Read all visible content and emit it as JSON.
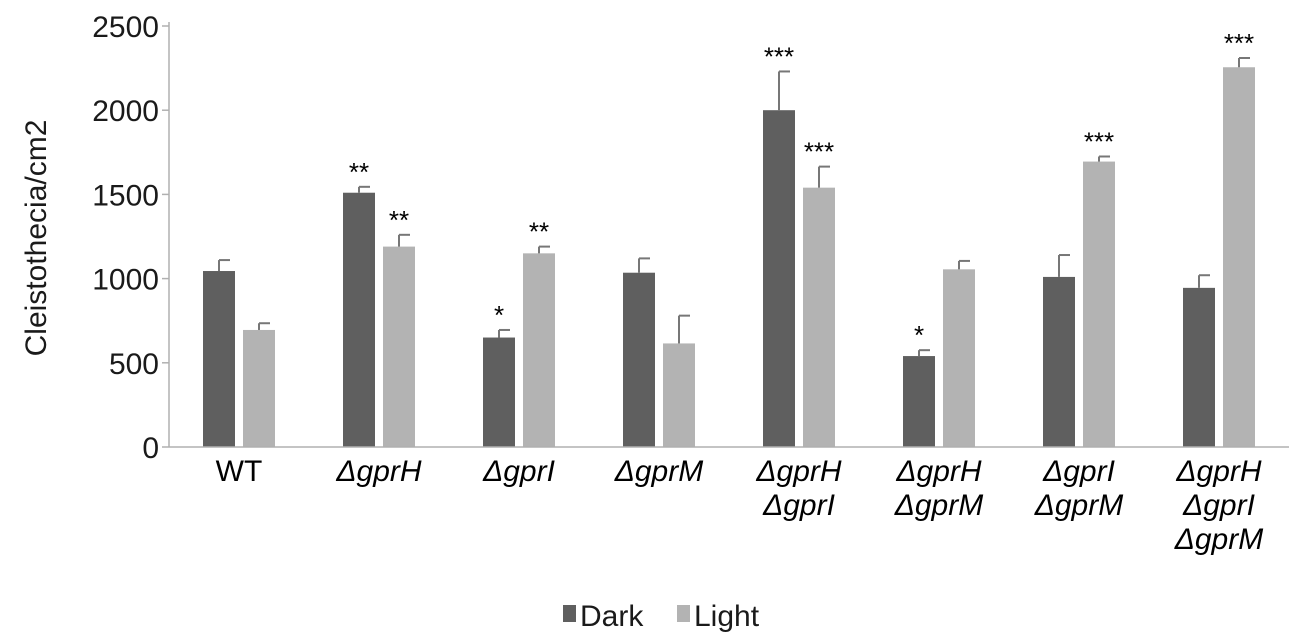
{
  "chart_data": {
    "type": "bar",
    "ylabel": "Cleistothecia/cm2",
    "xlabel": "",
    "ylim": [
      0,
      2500
    ],
    "yticks": [
      0,
      500,
      1000,
      1500,
      2000,
      2500
    ],
    "grid": false,
    "legend_position": "bottom",
    "categories": [
      {
        "lines": [
          "WT"
        ],
        "italic": false
      },
      {
        "lines": [
          "ΔgprH"
        ],
        "italic": true
      },
      {
        "lines": [
          "ΔgprI"
        ],
        "italic": true
      },
      {
        "lines": [
          "ΔgprM"
        ],
        "italic": true
      },
      {
        "lines": [
          "ΔgprH",
          "ΔgprI"
        ],
        "italic": true
      },
      {
        "lines": [
          "ΔgprH",
          "ΔgprM"
        ],
        "italic": true
      },
      {
        "lines": [
          "ΔgprI",
          "ΔgprM"
        ],
        "italic": true
      },
      {
        "lines": [
          "ΔgprH",
          "ΔgprI",
          "ΔgprM"
        ],
        "italic": true
      }
    ],
    "series": [
      {
        "name": "Dark",
        "color": "#5f5f5f",
        "values": [
          1045,
          1510,
          650,
          1035,
          2000,
          540,
          1010,
          945
        ],
        "errors": [
          65,
          35,
          45,
          85,
          230,
          35,
          130,
          75
        ],
        "significance": [
          "",
          "**",
          "*",
          "",
          "***",
          "*",
          "",
          ""
        ]
      },
      {
        "name": "Light",
        "color": "#b3b3b3",
        "values": [
          695,
          1190,
          1150,
          615,
          1540,
          1055,
          1695,
          2255
        ],
        "errors": [
          40,
          70,
          40,
          165,
          125,
          50,
          30,
          55
        ],
        "significance": [
          "",
          "**",
          "**",
          "",
          "***",
          "",
          "***",
          "***"
        ]
      }
    ]
  }
}
